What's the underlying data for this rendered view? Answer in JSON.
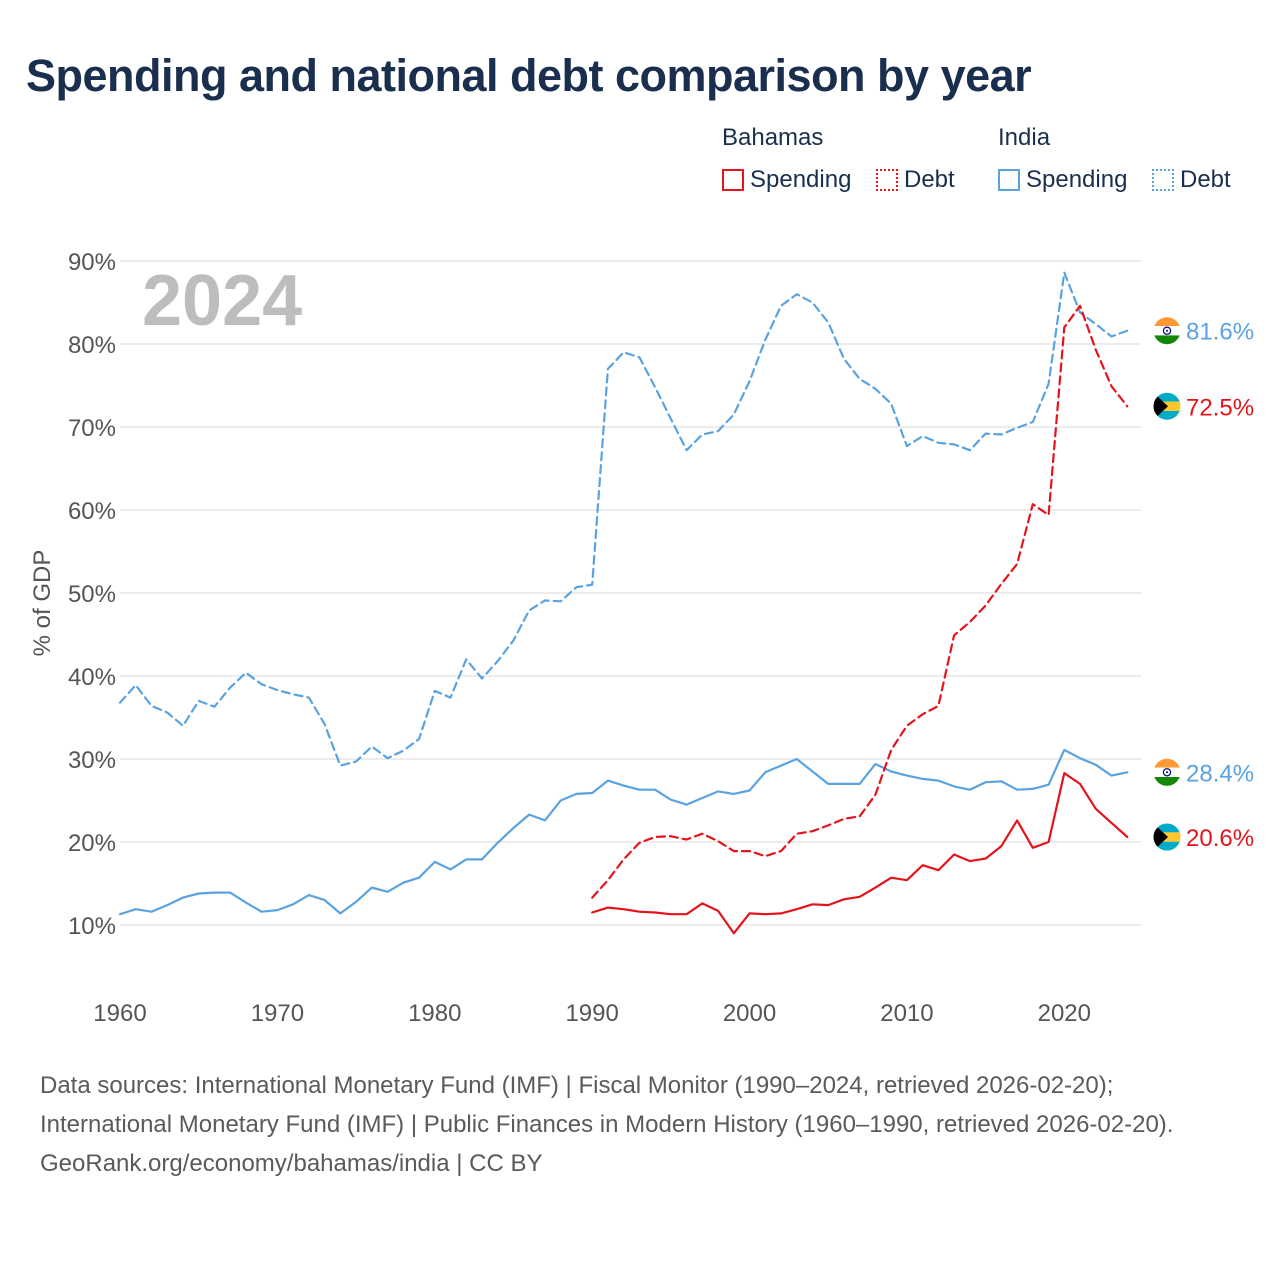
{
  "title": "Spending and national debt comparison by year",
  "legend": {
    "groups": [
      {
        "label": "Bahamas",
        "items": [
          {
            "label": "Spending"
          },
          {
            "label": "Debt"
          }
        ]
      },
      {
        "label": "India",
        "items": [
          {
            "label": "Spending"
          },
          {
            "label": "Debt"
          }
        ]
      }
    ]
  },
  "footer": {
    "sources": "Data sources: International Monetary Fund (IMF) | Fiscal Monitor (1990–2024, retrieved 2026-02-20); International Monetary Fund (IMF) | Public Finances in Modern History (1960–1990, retrieved 2026-02-20).",
    "credit": "GeoRank.org/economy/bahamas/india | CC BY"
  },
  "colors": {
    "bahamas": "#e4141b",
    "india": "#5aa3e0",
    "year_watermark": "#bdbdbd",
    "grid": "#e6e6e6",
    "axis_text": "#555555"
  },
  "chart_data": {
    "type": "line",
    "year_label": "2024",
    "ylabel": "% of GDP",
    "xlim": [
      1960,
      2025
    ],
    "ylim": [
      0,
      90
    ],
    "x_ticks": [
      1960,
      1970,
      1980,
      1990,
      2000,
      2010,
      2020
    ],
    "y_ticks": [
      10,
      20,
      30,
      40,
      50,
      60,
      70,
      80,
      90
    ],
    "y_tick_labels": [
      "10%",
      "20%",
      "30%",
      "40%",
      "50%",
      "60%",
      "70%",
      "80%",
      "90%"
    ],
    "series": [
      {
        "name": "India Debt",
        "country": "India",
        "metric": "Debt",
        "style": "dashed",
        "color": "#5aa3e0",
        "end_label": "81.6%",
        "flag": "india",
        "x": [
          1960,
          1961,
          1962,
          1963,
          1964,
          1965,
          1966,
          1967,
          1968,
          1969,
          1970,
          1971,
          1972,
          1973,
          1974,
          1975,
          1976,
          1977,
          1978,
          1979,
          1980,
          1981,
          1982,
          1983,
          1984,
          1985,
          1986,
          1987,
          1988,
          1989,
          1990,
          1991,
          1992,
          1993,
          1994,
          1995,
          1996,
          1997,
          1998,
          1999,
          2000,
          2001,
          2002,
          2003,
          2004,
          2005,
          2006,
          2007,
          2008,
          2009,
          2010,
          2011,
          2012,
          2013,
          2014,
          2015,
          2016,
          2017,
          2018,
          2019,
          2020,
          2021,
          2022,
          2023,
          2024
        ],
        "values": [
          36.8,
          38.9,
          36.4,
          35.6,
          34.0,
          37.0,
          36.3,
          38.6,
          40.4,
          39.0,
          38.3,
          37.8,
          37.4,
          34.2,
          29.2,
          29.7,
          31.5,
          30.1,
          31.0,
          32.4,
          38.2,
          37.4,
          42.0,
          39.7,
          41.8,
          44.3,
          47.9,
          49.1,
          49.0,
          50.7,
          51.0,
          77.0,
          79.0,
          78.4,
          74.8,
          71.0,
          67.2,
          69.1,
          69.5,
          71.5,
          75.5,
          80.5,
          84.6,
          86.0,
          85.0,
          82.6,
          78.2,
          75.8,
          74.6,
          72.8,
          67.7,
          68.9,
          68.1,
          67.9,
          67.2,
          69.2,
          69.1,
          69.9,
          70.6,
          75.2,
          88.6,
          83.8,
          82.4,
          80.9,
          81.6
        ]
      },
      {
        "name": "India Spending",
        "country": "India",
        "metric": "Spending",
        "style": "solid",
        "color": "#5aa3e0",
        "end_label": "28.4%",
        "flag": "india",
        "x": [
          1960,
          1961,
          1962,
          1963,
          1964,
          1965,
          1966,
          1967,
          1968,
          1969,
          1970,
          1971,
          1972,
          1973,
          1974,
          1975,
          1976,
          1977,
          1978,
          1979,
          1980,
          1981,
          1982,
          1983,
          1984,
          1985,
          1986,
          1987,
          1988,
          1989,
          1990,
          1991,
          1992,
          1993,
          1994,
          1995,
          1996,
          1997,
          1998,
          1999,
          2000,
          2001,
          2002,
          2003,
          2004,
          2005,
          2006,
          2007,
          2008,
          2009,
          2010,
          2011,
          2012,
          2013,
          2014,
          2015,
          2016,
          2017,
          2018,
          2019,
          2020,
          2021,
          2022,
          2023,
          2024
        ],
        "values": [
          11.3,
          11.9,
          11.6,
          12.4,
          13.3,
          13.8,
          13.9,
          13.9,
          12.7,
          11.6,
          11.8,
          12.5,
          13.6,
          13.0,
          11.4,
          12.8,
          14.5,
          14.0,
          15.1,
          15.7,
          17.6,
          16.7,
          17.9,
          17.9,
          19.9,
          21.7,
          23.3,
          22.6,
          25.0,
          25.8,
          25.9,
          27.4,
          26.8,
          26.3,
          26.3,
          25.1,
          24.5,
          25.3,
          26.1,
          25.8,
          26.2,
          28.4,
          29.2,
          30.0,
          28.5,
          27.0,
          27.0,
          27.0,
          29.4,
          28.5,
          28.0,
          27.6,
          27.4,
          26.7,
          26.3,
          27.2,
          27.3,
          26.3,
          26.4,
          26.9,
          31.1,
          30.1,
          29.3,
          28.0,
          28.4
        ]
      },
      {
        "name": "Bahamas Debt",
        "country": "Bahamas",
        "metric": "Debt",
        "style": "dashed",
        "color": "#e4141b",
        "end_label": "72.5%",
        "flag": "bahamas",
        "x": [
          1990,
          1991,
          1992,
          1993,
          1994,
          1995,
          1996,
          1997,
          1998,
          1999,
          2000,
          2001,
          2002,
          2003,
          2004,
          2005,
          2006,
          2007,
          2008,
          2009,
          2010,
          2011,
          2012,
          2013,
          2014,
          2015,
          2016,
          2017,
          2018,
          2019,
          2020,
          2021,
          2022,
          2023,
          2024
        ],
        "values": [
          13.3,
          15.4,
          17.9,
          19.9,
          20.6,
          20.7,
          20.3,
          21.0,
          20.1,
          18.9,
          18.9,
          18.3,
          18.9,
          21.0,
          21.3,
          22.0,
          22.8,
          23.1,
          25.7,
          31.1,
          34.0,
          35.4,
          36.4,
          44.9,
          46.5,
          48.5,
          51.1,
          53.5,
          60.7,
          59.4,
          82.0,
          84.6,
          79.3,
          74.9,
          72.5
        ]
      },
      {
        "name": "Bahamas Spending",
        "country": "Bahamas",
        "metric": "Spending",
        "style": "solid",
        "color": "#e4141b",
        "end_label": "20.6%",
        "flag": "bahamas",
        "x": [
          1990,
          1991,
          1992,
          1993,
          1994,
          1995,
          1996,
          1997,
          1998,
          1999,
          2000,
          2001,
          2002,
          2003,
          2004,
          2005,
          2006,
          2007,
          2008,
          2009,
          2010,
          2011,
          2012,
          2013,
          2014,
          2015,
          2016,
          2017,
          2018,
          2019,
          2020,
          2021,
          2022,
          2023,
          2024
        ],
        "values": [
          11.5,
          12.1,
          11.9,
          11.6,
          11.5,
          11.3,
          11.3,
          12.6,
          11.7,
          9.0,
          11.4,
          11.3,
          11.4,
          11.9,
          12.5,
          12.4,
          13.1,
          13.4,
          14.5,
          15.7,
          15.4,
          17.2,
          16.6,
          18.5,
          17.7,
          18.0,
          19.5,
          22.6,
          19.3,
          20.0,
          28.3,
          27.0,
          24.0,
          22.3,
          20.6
        ]
      }
    ]
  }
}
